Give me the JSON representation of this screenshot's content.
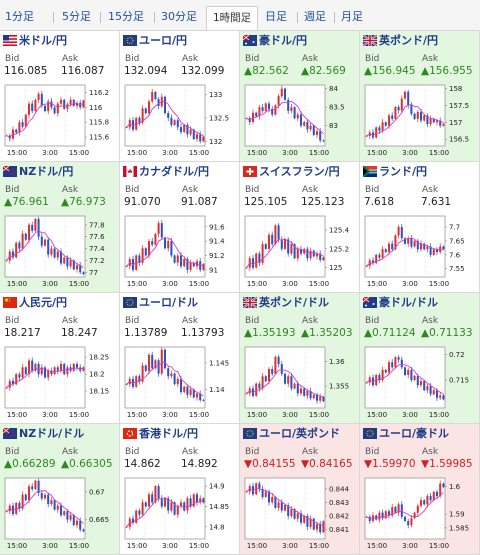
{
  "tabs": [
    {
      "label": "1分足",
      "active": false
    },
    {
      "label": "5分足",
      "active": false
    },
    {
      "label": "15分足",
      "active": false
    },
    {
      "label": "30分足",
      "active": false
    },
    {
      "label": "1時間足",
      "active": true
    },
    {
      "label": "日足",
      "active": false
    },
    {
      "label": "週足",
      "active": false
    },
    {
      "label": "月足",
      "active": false
    }
  ],
  "labels": {
    "bid": "Bid",
    "ask": "Ask"
  },
  "colors": {
    "up": "#2c8a1e",
    "down": "#d02020",
    "link": "#1f3c88",
    "candle_up": "#e03030",
    "candle_down": "#2b52c8",
    "ma": "#d040c8"
  },
  "pairs": [
    {
      "name": "米ドル/円",
      "flag": "us",
      "trend": "none",
      "bid": "116.085",
      "ask": "116.087",
      "yticks": [
        "116.2",
        "116",
        "115.8",
        "115.6"
      ],
      "ylim": [
        115.48,
        116.3
      ],
      "open": 115.62,
      "path": [
        115.62,
        115.58,
        115.7,
        115.66,
        115.8,
        115.74,
        115.9,
        116.05,
        115.95,
        116.1,
        116.18,
        116.02,
        115.95,
        116.08,
        116.0,
        115.92,
        116.05,
        116.1,
        115.98,
        116.04,
        116.1,
        116.02,
        116.06,
        116.0,
        116.09
      ],
      "xticks": [
        "15:00",
        "3:00",
        "15:00"
      ]
    },
    {
      "name": "ユーロ/円",
      "flag": "eu",
      "trend": "none",
      "bid": "132.094",
      "ask": "132.099",
      "yticks": [
        "133",
        "132.5",
        "132"
      ],
      "ylim": [
        131.9,
        133.2
      ],
      "open": 132.3,
      "path": [
        132.3,
        132.45,
        132.25,
        132.5,
        132.4,
        132.7,
        132.6,
        132.85,
        133.05,
        132.9,
        132.75,
        132.95,
        132.6,
        132.5,
        132.35,
        132.45,
        132.3,
        132.2,
        132.35,
        132.15,
        132.25,
        132.05,
        132.15,
        132.0,
        132.1
      ],
      "xticks": [
        "15:00",
        "3:00",
        "15:00"
      ]
    },
    {
      "name": "豪ドル/円",
      "flag": "au",
      "trend": "up",
      "bid": "▲82.562",
      "ask": "▲82.569",
      "yticks": [
        "84",
        "83.5",
        "83"
      ],
      "ylim": [
        82.45,
        84.1
      ],
      "open": 83.2,
      "path": [
        83.2,
        83.1,
        83.35,
        83.25,
        83.5,
        83.4,
        83.6,
        83.45,
        83.3,
        83.55,
        83.8,
        84.0,
        83.7,
        83.4,
        83.5,
        83.2,
        83.3,
        83.0,
        83.1,
        82.9,
        83.0,
        82.75,
        82.85,
        82.6,
        82.58
      ],
      "xticks": [
        "15:00",
        "3:00",
        "15:00"
      ]
    },
    {
      "name": "英ポンド/円",
      "flag": "gb",
      "trend": "up",
      "bid": "▲156.945",
      "ask": "▲156.955",
      "yticks": [
        "158",
        "157.5",
        "157",
        "156.5"
      ],
      "ylim": [
        156.3,
        158.1
      ],
      "open": 156.6,
      "path": [
        156.6,
        156.7,
        156.55,
        156.85,
        156.75,
        157.0,
        156.9,
        157.2,
        157.1,
        157.45,
        157.35,
        157.7,
        157.9,
        157.5,
        157.25,
        157.1,
        157.3,
        157.05,
        157.2,
        156.95,
        157.1,
        157.0,
        157.05,
        156.9,
        156.95
      ],
      "xticks": [
        "15:00",
        "3:00",
        "15:00"
      ]
    },
    {
      "name": "NZドル/円",
      "flag": "nz",
      "trend": "up",
      "bid": "▲76.961",
      "ask": "▲76.973",
      "yticks": [
        "77.8",
        "77.6",
        "77.4",
        "77.2",
        "77"
      ],
      "ylim": [
        76.92,
        77.95
      ],
      "open": 77.2,
      "path": [
        77.2,
        77.35,
        77.25,
        77.5,
        77.4,
        77.65,
        77.55,
        77.8,
        77.7,
        77.9,
        77.6,
        77.45,
        77.55,
        77.3,
        77.4,
        77.25,
        77.35,
        77.15,
        77.25,
        77.1,
        77.2,
        77.05,
        77.12,
        77.0,
        76.97
      ],
      "xticks": [
        "15:00",
        "3:00",
        "15:00"
      ]
    },
    {
      "name": "カナダドル/円",
      "flag": "ca",
      "trend": "none",
      "bid": "91.070",
      "ask": "91.087",
      "yticks": [
        "91.6",
        "91.4",
        "91.2",
        "91"
      ],
      "ylim": [
        90.9,
        91.75
      ],
      "open": 91.05,
      "path": [
        91.05,
        91.15,
        91.0,
        91.2,
        91.1,
        91.3,
        91.2,
        91.4,
        91.35,
        91.5,
        91.65,
        91.45,
        91.3,
        91.4,
        91.2,
        91.1,
        91.2,
        91.05,
        91.15,
        91.0,
        91.1,
        91.05,
        91.12,
        91.0,
        91.08
      ],
      "xticks": [
        "15:00",
        "3:00",
        "15:00"
      ]
    },
    {
      "name": "スイスフラン/円",
      "flag": "ch",
      "trend": "none",
      "bid": "125.105",
      "ask": "125.123",
      "yticks": [
        "125.4",
        "125.2",
        "125"
      ],
      "ylim": [
        124.9,
        125.55
      ],
      "open": 125.0,
      "path": [
        125.0,
        125.1,
        125.0,
        125.15,
        125.05,
        125.25,
        125.2,
        125.35,
        125.25,
        125.45,
        125.3,
        125.2,
        125.3,
        125.15,
        125.25,
        125.1,
        125.2,
        125.15,
        125.2,
        125.1,
        125.18,
        125.12,
        125.15,
        125.08,
        125.11
      ],
      "xticks": [
        "15:00",
        "3:00",
        "15:00"
      ]
    },
    {
      "name": "ランド/円",
      "flag": "za",
      "trend": "none",
      "bid": "7.618",
      "ask": "7.631",
      "yticks": [
        "7.7",
        "7.65",
        "7.6",
        "7.55"
      ],
      "ylim": [
        7.52,
        7.74
      ],
      "open": 7.56,
      "path": [
        7.56,
        7.58,
        7.57,
        7.6,
        7.59,
        7.62,
        7.61,
        7.64,
        7.62,
        7.67,
        7.7,
        7.66,
        7.64,
        7.66,
        7.63,
        7.65,
        7.62,
        7.64,
        7.62,
        7.63,
        7.6,
        7.62,
        7.61,
        7.63,
        7.62
      ],
      "xticks": [
        "15:00",
        "3:00",
        "15:00"
      ]
    },
    {
      "name": "人民元/円",
      "flag": "cn",
      "trend": "none",
      "bid": "18.217",
      "ask": "18.247",
      "yticks": [
        "18.25",
        "18.2",
        "18.15"
      ],
      "ylim": [
        18.1,
        18.28
      ],
      "open": 18.16,
      "path": [
        18.16,
        18.18,
        18.17,
        18.2,
        18.19,
        18.22,
        18.2,
        18.24,
        18.21,
        18.23,
        18.2,
        18.22,
        18.19,
        18.21,
        18.2,
        18.22,
        18.21,
        18.23,
        18.2,
        18.22,
        18.21,
        18.23,
        18.22,
        18.21,
        18.22
      ],
      "xticks": [
        "15:00",
        "3:00",
        "15:00"
      ]
    },
    {
      "name": "ユーロ/ドル",
      "flag": "eu",
      "trend": "none",
      "bid": "1.13789",
      "ask": "1.13793",
      "yticks": [
        "1.145",
        "1.14"
      ],
      "ylim": [
        1.1365,
        1.148
      ],
      "open": 1.141,
      "path": [
        1.141,
        1.142,
        1.1405,
        1.1425,
        1.1415,
        1.1445,
        1.1435,
        1.1465,
        1.144,
        1.1455,
        1.143,
        1.1475,
        1.144,
        1.1425,
        1.143,
        1.141,
        1.142,
        1.1395,
        1.1405,
        1.139,
        1.14,
        1.1385,
        1.1392,
        1.138,
        1.1379
      ],
      "xticks": [
        "15:00",
        "3:00",
        "15:00"
      ]
    },
    {
      "name": "英ポンド/ドル",
      "flag": "gb",
      "trend": "up",
      "bid": "▲1.35193",
      "ask": "▲1.35203",
      "yticks": [
        "1.36",
        "1.355"
      ],
      "ylim": [
        1.3505,
        1.363
      ],
      "open": 1.3535,
      "path": [
        1.3535,
        1.3545,
        1.353,
        1.3555,
        1.3545,
        1.357,
        1.356,
        1.3585,
        1.3575,
        1.361,
        1.3595,
        1.3575,
        1.3555,
        1.357,
        1.3545,
        1.3555,
        1.3535,
        1.3545,
        1.353,
        1.354,
        1.3525,
        1.3532,
        1.352,
        1.3528,
        1.3519
      ],
      "xticks": [
        "15:00",
        "3:00",
        "15:00"
      ]
    },
    {
      "name": "豪ドル/ドル",
      "flag": "au",
      "trend": "up",
      "bid": "▲0.71124",
      "ask": "▲0.71133",
      "yticks": [
        "0.72",
        "0.715"
      ],
      "ylim": [
        0.7095,
        0.7215
      ],
      "open": 0.7145,
      "path": [
        0.7145,
        0.7155,
        0.714,
        0.716,
        0.715,
        0.717,
        0.7165,
        0.7185,
        0.7175,
        0.7195,
        0.719,
        0.7175,
        0.716,
        0.717,
        0.715,
        0.7158,
        0.714,
        0.7148,
        0.713,
        0.7138,
        0.7122,
        0.713,
        0.7115,
        0.712,
        0.7112
      ],
      "xticks": [
        "15:00",
        "3:00",
        "15:00"
      ]
    },
    {
      "name": "NZドル/ドル",
      "flag": "nz",
      "trend": "up",
      "bid": "▲0.66289",
      "ask": "▲0.66305",
      "yticks": [
        "0.67",
        "0.665"
      ],
      "ylim": [
        0.6615,
        0.6725
      ],
      "open": 0.6665,
      "path": [
        0.6665,
        0.6675,
        0.666,
        0.668,
        0.667,
        0.6695,
        0.6685,
        0.671,
        0.6705,
        0.672,
        0.6698,
        0.6688,
        0.6695,
        0.6678,
        0.6685,
        0.6668,
        0.6675,
        0.6658,
        0.6665,
        0.665,
        0.6658,
        0.664,
        0.6648,
        0.6632,
        0.6629
      ],
      "xticks": [
        "15:00",
        "3:00",
        "15:00"
      ]
    },
    {
      "name": "香港ドル/円",
      "flag": "hk",
      "trend": "none",
      "bid": "14.862",
      "ask": "14.892",
      "yticks": [
        "14.9",
        "14.85",
        "14.8"
      ],
      "ylim": [
        14.77,
        14.92
      ],
      "open": 14.8,
      "path": [
        14.8,
        14.82,
        14.81,
        14.84,
        14.83,
        14.86,
        14.85,
        14.88,
        14.86,
        14.9,
        14.87,
        14.85,
        14.87,
        14.84,
        14.86,
        14.83,
        14.85,
        14.86,
        14.84,
        14.87,
        14.85,
        14.88,
        14.86,
        14.87,
        14.86
      ],
      "xticks": [
        "15:00",
        "3:00",
        "15:00"
      ]
    },
    {
      "name": "ユーロ/英ポンド",
      "flag": "eu",
      "trend": "down",
      "bid": "▼0.84155",
      "ask": "▼0.84165",
      "yticks": [
        "0.844",
        "0.843",
        "0.842",
        "0.841"
      ],
      "ylim": [
        0.8403,
        0.8448
      ],
      "open": 0.8438,
      "path": [
        0.8438,
        0.8442,
        0.8436,
        0.8444,
        0.844,
        0.8434,
        0.8438,
        0.843,
        0.8434,
        0.8426,
        0.843,
        0.8424,
        0.8428,
        0.842,
        0.8425,
        0.8418,
        0.8422,
        0.8415,
        0.842,
        0.8412,
        0.8418,
        0.841,
        0.8414,
        0.8408,
        0.8416
      ],
      "xticks": [
        "15:00",
        "3:00",
        "15:00"
      ]
    },
    {
      "name": "ユーロ/豪ドル",
      "flag": "eu",
      "trend": "down",
      "bid": "▼1.59970",
      "ask": "▼1.59985",
      "yticks": [
        "1.6",
        "1.59",
        "1.585"
      ],
      "ylim": [
        1.581,
        1.603
      ],
      "open": 1.589,
      "path": [
        1.589,
        1.5875,
        1.5895,
        1.588,
        1.5905,
        1.5885,
        1.591,
        1.5895,
        1.5925,
        1.5905,
        1.5935,
        1.589,
        1.5875,
        1.586,
        1.5885,
        1.5905,
        1.593,
        1.595,
        1.5935,
        1.5965,
        1.595,
        1.598,
        1.5965,
        1.601,
        1.5997
      ],
      "xticks": [
        "15:00",
        "3:00",
        "15:00"
      ]
    }
  ]
}
